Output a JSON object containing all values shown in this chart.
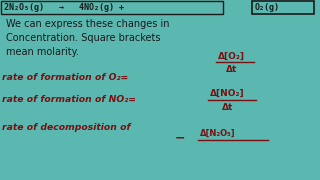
{
  "background_color": "#5ab8b0",
  "dark_color": "#1a1a1a",
  "red_color": "#7B1010",
  "fig_width": 3.2,
  "fig_height": 1.8,
  "dpi": 100,
  "top_box_text": "2N₂O₅(g)   →   4NO₂(g) +",
  "top_box2_text": "O₂(g)",
  "line2": "We can express these changes in",
  "line3": "Concentration. Square brackets",
  "line4": "mean molarity.",
  "frac1_num": "Δ[O₂]",
  "frac1_den": "Δt",
  "line5": "rate of formation of O₂=",
  "frac2_num": "Δ[NO₂]",
  "frac2_den": "Δt",
  "line6": "rate of formation of NO₂=",
  "line7": "rate of decomposition of",
  "frac3_num": "Δ[N₂O₅]"
}
